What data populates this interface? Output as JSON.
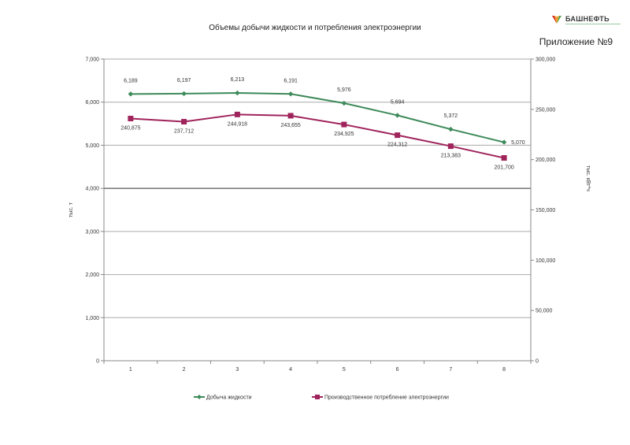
{
  "header": {
    "title": "Объемы добычи жидкости и потребления электроэнергии",
    "appendix": "Приложение №9",
    "logo_text": "БАШНЕФТЬ"
  },
  "chart_data": {
    "type": "line",
    "x": [
      1,
      2,
      3,
      4,
      5,
      6,
      7,
      8
    ],
    "x_tick_labels": [
      "1",
      "2",
      "3",
      "4",
      "5",
      "6",
      "7",
      "8"
    ],
    "y_left": {
      "label": "тыс. т",
      "range": [
        0,
        7000
      ],
      "ticks": [
        0,
        1000,
        2000,
        3000,
        4000,
        5000,
        6000,
        7000
      ],
      "tick_labels": [
        "0",
        "1,000",
        "2,000",
        "3,000",
        "4,000",
        "5,000",
        "6,000",
        "7,000"
      ]
    },
    "y_right": {
      "label": "тыс. кВт*ч",
      "range": [
        0,
        300000
      ],
      "ticks": [
        0,
        50000,
        100000,
        150000,
        200000,
        250000,
        300000
      ],
      "tick_labels": [
        "0",
        "50,000",
        "100,000",
        "150,000",
        "200,000",
        "250,000",
        "300,000"
      ]
    },
    "grid": true,
    "legend_position": "bottom",
    "series": [
      {
        "name": "Добыча жидкости",
        "axis": "left",
        "color": "#3d8a5a",
        "marker": "diamond",
        "values": [
          6189,
          6197,
          6213,
          6191,
          5976,
          5694,
          5372,
          5070
        ],
        "labels": [
          "6,189",
          "6,197",
          "6,213",
          "6,191",
          "5,976",
          "5,694",
          "5,372",
          "5,070"
        ]
      },
      {
        "name": "Производственное потребление электроэнергии",
        "axis": "right",
        "color": "#a0245c",
        "marker": "square",
        "values": [
          240875,
          237712,
          244918,
          243655,
          234925,
          224312,
          213383,
          201700
        ],
        "labels": [
          "240,875",
          "237,712",
          "244,918",
          "243,655",
          "234,925",
          "224,312",
          "213,383",
          "201,700"
        ]
      }
    ]
  }
}
